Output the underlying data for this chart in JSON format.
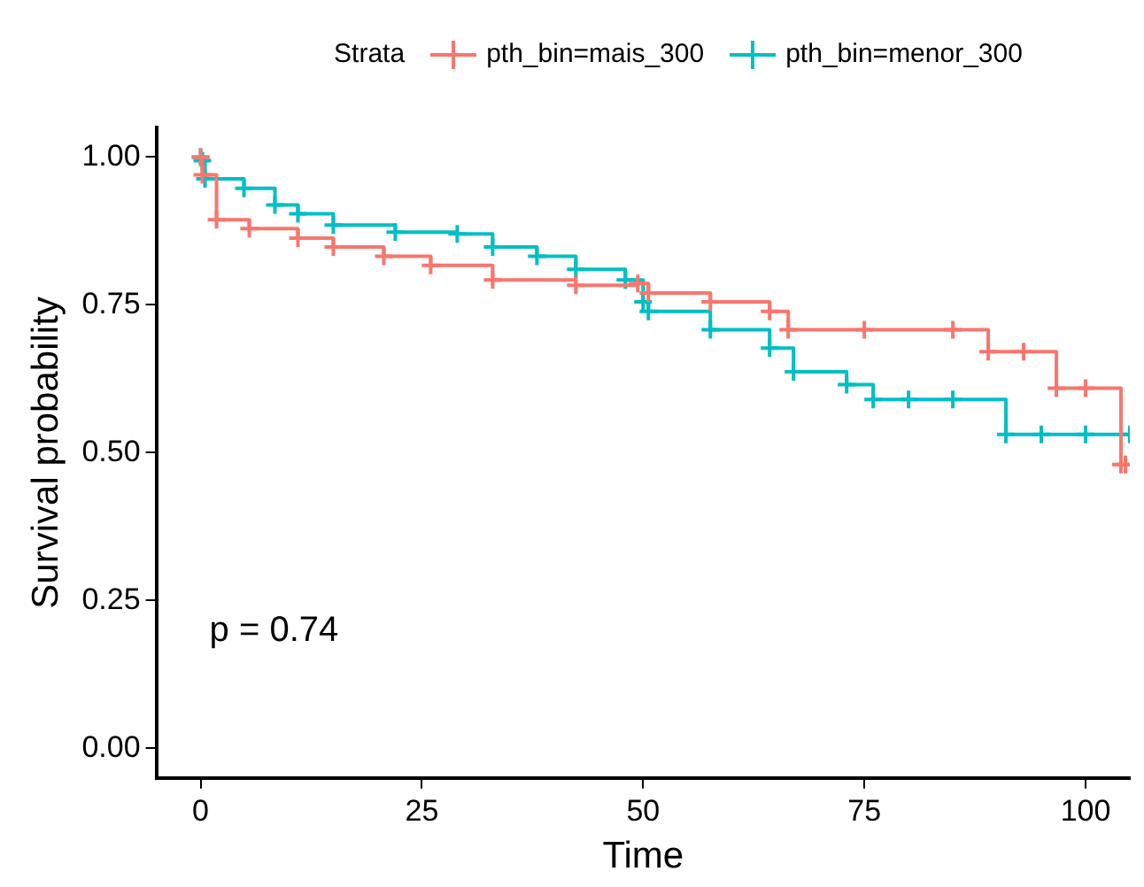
{
  "chart_data": {
    "type": "step",
    "xlabel": "Time",
    "ylabel": "Survival probability",
    "legend_title": "Strata",
    "legend": "top",
    "marker": "cross",
    "grid": false,
    "annotations": [
      "p = 0.74"
    ],
    "xlim": [
      -5,
      105
    ],
    "xticks": [
      0,
      25,
      50,
      75,
      100
    ],
    "ylim": [
      -0.05,
      1.05
    ],
    "yticks": [
      {
        "value": 0,
        "label": "0.00"
      },
      {
        "value": 0.25,
        "label": "0.25"
      },
      {
        "value": 0.5,
        "label": "0.50"
      },
      {
        "value": 0.75,
        "label": "0.75"
      },
      {
        "value": 1,
        "label": "1.00"
      }
    ],
    "series": [
      {
        "name": "pth_bin=mais_300",
        "color": "#f8766d",
        "x": [
          0,
          0.2,
          1.8,
          5.5,
          11,
          15,
          20.7,
          26,
          33,
          42.4,
          49.4,
          50.6,
          57.6,
          64.3,
          66.4,
          75,
          85,
          89,
          93,
          96.7,
          100,
          104,
          104.5
        ],
        "values": [
          1,
          0.97,
          0.894,
          0.879,
          0.863,
          0.848,
          0.832,
          0.817,
          0.792,
          0.783,
          0.786,
          0.77,
          0.755,
          0.739,
          0.708,
          0.708,
          0.708,
          0.671,
          0.671,
          0.609,
          0.609,
          0.48,
          0.48
        ]
      },
      {
        "name": "pth_bin=menor_300",
        "color": "#00bfc4",
        "x": [
          0,
          0.2,
          0.5,
          4.9,
          8.4,
          11,
          15,
          22,
          29,
          33,
          38,
          42.4,
          48,
          50,
          50.6,
          57.6,
          64.3,
          67,
          73,
          76,
          80,
          85,
          91,
          95,
          100,
          105
        ],
        "values": [
          1,
          0.994,
          0.963,
          0.947,
          0.919,
          0.904,
          0.885,
          0.873,
          0.87,
          0.848,
          0.832,
          0.81,
          0.792,
          0.755,
          0.739,
          0.708,
          0.677,
          0.637,
          0.615,
          0.59,
          0.59,
          0.59,
          0.531,
          0.531,
          0.531,
          0.531
        ]
      }
    ]
  }
}
